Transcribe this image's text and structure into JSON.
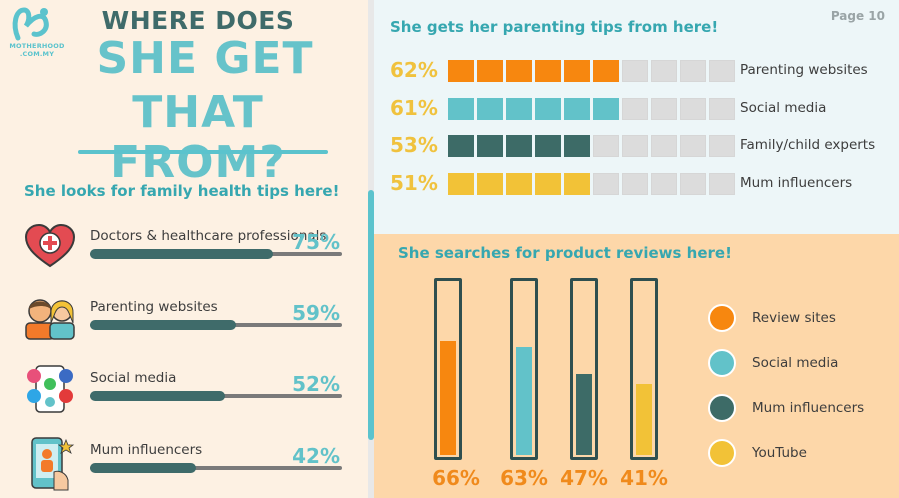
{
  "brand": {
    "logo_text": "MOTHERHOOD",
    "logo_sub": ".COM.MY"
  },
  "title": {
    "line1": "WHERE DOES",
    "line2": "SHE GET",
    "line3": "THAT FROM?"
  },
  "page": {
    "label": "Page 10"
  },
  "health_tips": {
    "heading": "She looks for family health tips here!",
    "items": [
      {
        "label": "Doctors & healthcare professionals",
        "pct": "75%",
        "value": 75,
        "icon": "heart-plus-icon"
      },
      {
        "label": "Parenting websites",
        "pct": "59%",
        "value": 59,
        "icon": "parents-icon"
      },
      {
        "label": "Social media",
        "pct": "52%",
        "value": 52,
        "icon": "social-apps-icon"
      },
      {
        "label": "Mum influencers",
        "pct": "42%",
        "value": 42,
        "icon": "influencer-phone-icon"
      }
    ]
  },
  "parenting_tips": {
    "heading": "She gets her parenting tips from here!",
    "items": [
      {
        "label": "Parenting websites",
        "pct": "62%",
        "filled": 6,
        "color": "#f7870f"
      },
      {
        "label": "Social media",
        "pct": "61%",
        "filled": 6,
        "color": "#62c2c9"
      },
      {
        "label": "Family/child experts",
        "pct": "53%",
        "filled": 5,
        "color": "#3d6b67"
      },
      {
        "label": "Mum influencers",
        "pct": "51%",
        "filled": 5,
        "color": "#f2c237"
      }
    ],
    "total_blocks": 10
  },
  "product_reviews": {
    "heading": "She searches for product reviews here!",
    "items": [
      {
        "label": "Review sites",
        "pct": "66%",
        "value": 66,
        "color": "#f7870f"
      },
      {
        "label": "Social media",
        "pct": "63%",
        "value": 63,
        "color": "#62c2c9"
      },
      {
        "label": "Mum influencers",
        "pct": "47%",
        "value": 47,
        "color": "#3d6b67"
      },
      {
        "label": "YouTube",
        "pct": "41%",
        "value": 41,
        "color": "#f2c237"
      }
    ]
  },
  "colors": {
    "teal": "#62c2c9",
    "dark_teal": "#3f6b6a",
    "orange": "#f7870f",
    "yellow": "#f2c237"
  }
}
